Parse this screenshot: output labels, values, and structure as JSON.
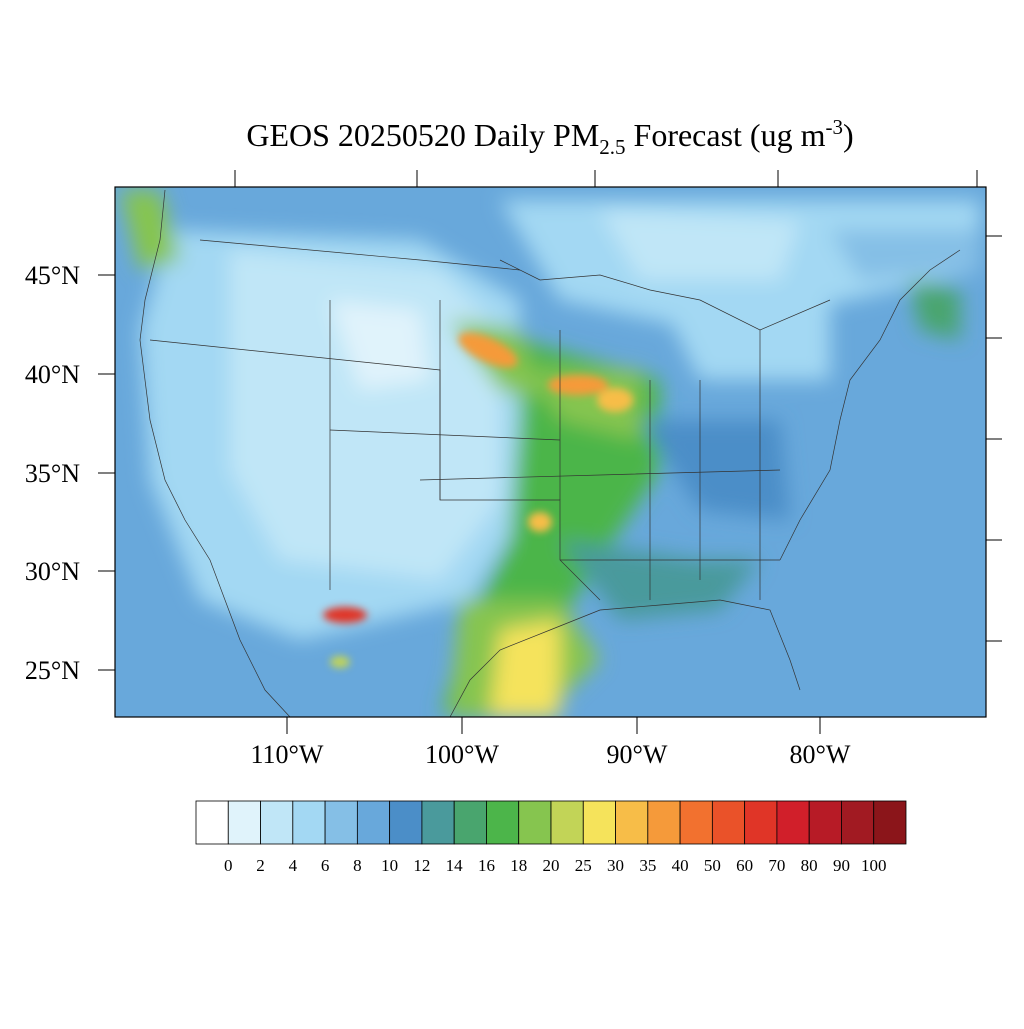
{
  "title": {
    "lead": "GEOS 20250520 Daily PM",
    "subscript": "2.5",
    "middle": " Forecast (ug m",
    "superscript": "-3",
    "tail": ")"
  },
  "lat_labels": [
    "45°N",
    "40°N",
    "35°N",
    "30°N",
    "25°N"
  ],
  "lon_labels": [
    "110°W",
    "100°W",
    "90°W",
    "80°W"
  ],
  "colorbar": {
    "levels": [
      0,
      2,
      4,
      6,
      8,
      10,
      12,
      14,
      16,
      18,
      20,
      25,
      30,
      35,
      40,
      50,
      60,
      70,
      80,
      90,
      100
    ],
    "colors": [
      "#ffffff",
      "#e0f3fb",
      "#c0e6f7",
      "#a3d8f3",
      "#85bfe6",
      "#68a8db",
      "#4b8ec8",
      "#4a9a9c",
      "#49a56e",
      "#4cb54a",
      "#86c54f",
      "#c2d457",
      "#f5e35b",
      "#f7bd48",
      "#f59a3a",
      "#f2712f",
      "#ea5229",
      "#e03527",
      "#d11f2a",
      "#b71b26",
      "#a11a22",
      "#8b151a"
    ]
  }
}
